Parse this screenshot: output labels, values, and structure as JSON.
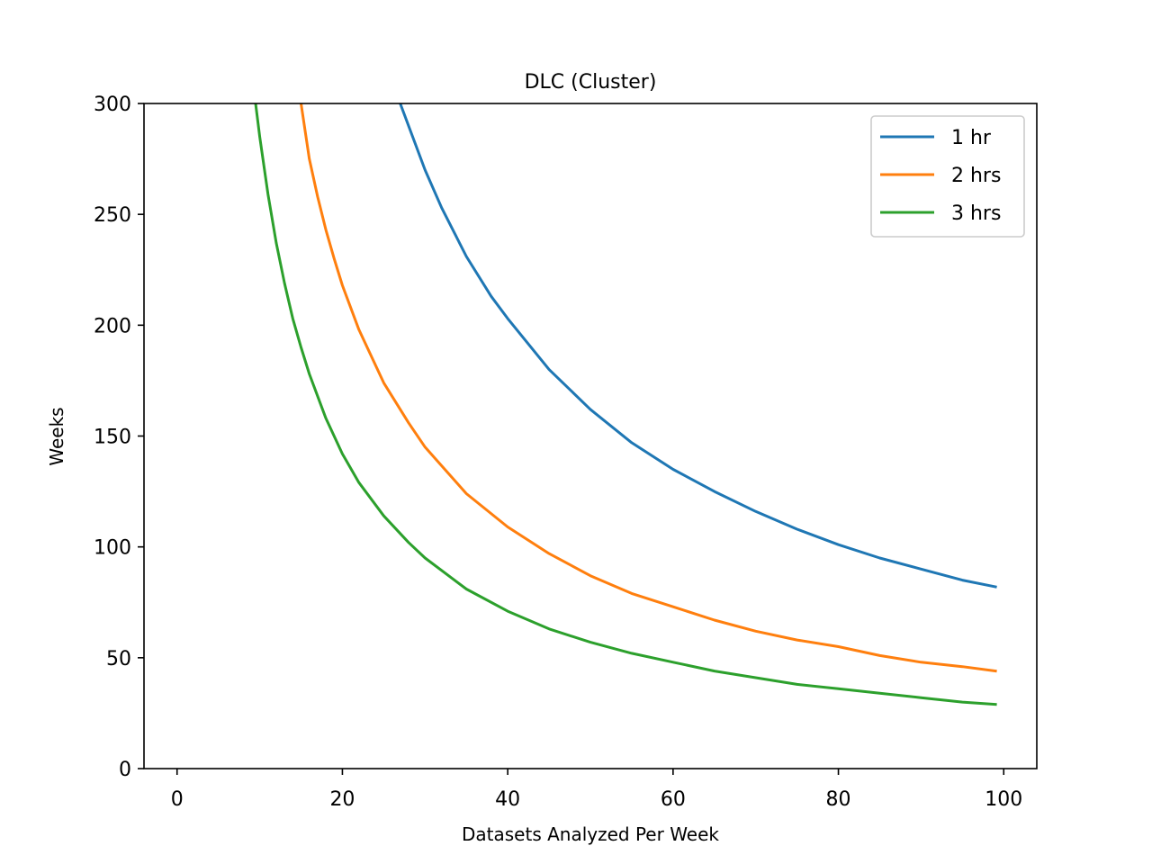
{
  "chart_data": {
    "type": "line",
    "title": "DLC (Cluster)",
    "xlabel": "Datasets Analyzed Per Week",
    "ylabel": "Weeks",
    "xlim": [
      -4,
      104
    ],
    "ylim": [
      0,
      300
    ],
    "xticks": [
      0,
      20,
      40,
      60,
      80,
      100
    ],
    "yticks": [
      0,
      50,
      100,
      150,
      200,
      250,
      300
    ],
    "grid": false,
    "legend_position": "upper right",
    "series": [
      {
        "name": "1 hr",
        "color": "#1f77b4",
        "x": [
          27,
          28,
          30,
          32,
          35,
          38,
          40,
          45,
          50,
          55,
          60,
          65,
          70,
          75,
          80,
          85,
          90,
          95,
          99
        ],
        "y": [
          300,
          290,
          270,
          253,
          231,
          213,
          203,
          180,
          162,
          147,
          135,
          125,
          116,
          108,
          101,
          95,
          90,
          85,
          82
        ]
      },
      {
        "name": "2 hrs",
        "color": "#ff7f0e",
        "x": [
          15,
          16,
          17,
          18,
          19,
          20,
          22,
          25,
          28,
          30,
          35,
          40,
          45,
          50,
          55,
          60,
          65,
          70,
          75,
          80,
          85,
          90,
          95,
          99
        ],
        "y": [
          300,
          275,
          258,
          243,
          230,
          218,
          198,
          174,
          156,
          145,
          124,
          109,
          97,
          87,
          79,
          73,
          67,
          62,
          58,
          55,
          51,
          48,
          46,
          44
        ]
      },
      {
        "name": "3 hrs",
        "color": "#2ca02c",
        "x": [
          9.5,
          10,
          11,
          12,
          13,
          14,
          15,
          16,
          18,
          20,
          22,
          25,
          28,
          30,
          35,
          40,
          45,
          50,
          55,
          60,
          65,
          70,
          75,
          80,
          85,
          90,
          95,
          99
        ],
        "y": [
          300,
          285,
          259,
          237,
          219,
          203,
          190,
          178,
          158,
          142,
          129,
          114,
          102,
          95,
          81,
          71,
          63,
          57,
          52,
          48,
          44,
          41,
          38,
          36,
          34,
          32,
          30,
          29
        ]
      }
    ]
  }
}
